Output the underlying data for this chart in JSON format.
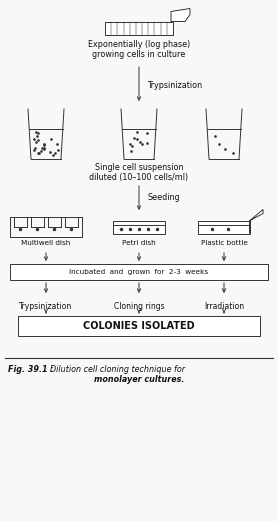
{
  "bg_color": "#f8f8f6",
  "line_color": "#333333",
  "text_color": "#111111",
  "flask_label": "Exponentially (log phase)\ngrowing cells in culture",
  "arrow1_label": "Trypsinization",
  "beakers_label": "Single cell suspension\ndiluted (10–100 cells/ml)",
  "arrow2_label": "Seeding",
  "multiwell_label": "Multiwell dish",
  "petri_label": "Petri dish",
  "bottle_label": "Plastic bottle",
  "incubated_label": "Incubated  and  grown  for  2-3  weeks",
  "tryp2_label": "Trypsinization",
  "cloning_label": "Cloning rings",
  "irrad_label": "Irradiation",
  "colonies_label": "COLONIES ISOLATED",
  "caption_bold": "Fig. 39.1 : ",
  "caption_italic": "Dilution cell cloning technique for\nmonolayer cultures."
}
